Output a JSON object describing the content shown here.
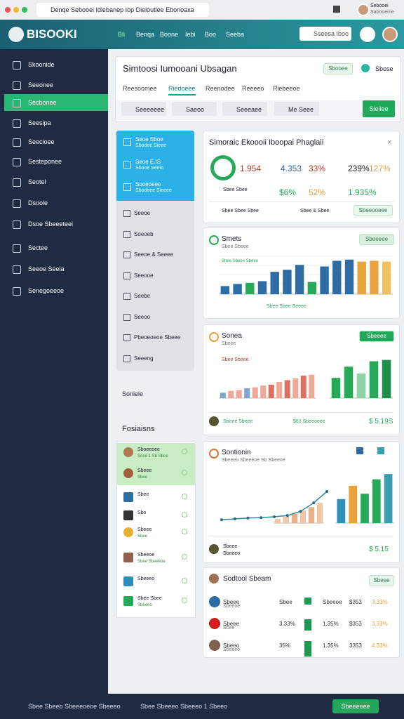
{
  "browser": {
    "tab": "Denqe Sebooei Idlebanep Iop Dieloutlee Ebonoaxa",
    "user": "Sebooei",
    "user_sub": "Sabooeme"
  },
  "header": {
    "logo": "BISOOKI",
    "nav": [
      "Bli",
      "Benqa",
      "Boone",
      "Iebi",
      "Boo",
      "Seeba"
    ],
    "search": "Sseesa Iboo"
  },
  "sidebar": {
    "active": 2,
    "items": [
      "Skoonide",
      "Seeonee",
      "Secbonee",
      "Seesipa",
      "Seecioee",
      "Sesteponee",
      "Seotel",
      "Dsoole",
      "Dsoe Sbeeeteei",
      "Sectee",
      "Seeoe Seeia",
      "Senegoeeoe"
    ]
  },
  "page": {
    "title": "Simtoosi Iumooani Ubsagan",
    "badge": "Sbooee",
    "status": "Sbose",
    "active_tab": 1,
    "tabs": [
      "Reesoomee",
      "Riedoeee",
      "Reenodee",
      "Reeeeo",
      "Riebeeoe"
    ],
    "tools": [
      "Seeeeeee",
      "Saeoo",
      "Seeeaee",
      "Me Seee"
    ],
    "action": "Sieiiee"
  },
  "list": {
    "highlighted": [
      {
        "title": "Seoe Sboe",
        "sub": "Sbodee Sieee"
      },
      {
        "title": "Seoe E.IS",
        "sub": "Sbooe Seeio"
      },
      {
        "title": "Sooeoeee",
        "sub": "Sbodeee Sieeee"
      }
    ],
    "items": [
      "Seeoe",
      "Soeoeb",
      "Seeoe & Seeee",
      "Seeooe",
      "Seebe",
      "Seeoo",
      "Pbeoeoeoe Sbeee",
      "Seeeng"
    ],
    "footer": "Sonieie"
  },
  "people": {
    "title": "Fosiaisns",
    "items": [
      {
        "name": "Sboeeoee",
        "sub": "Seee 1 Sb Sbee"
      },
      {
        "name": "Sbeee",
        "sub": "Sbee"
      },
      {
        "name": "Sbee",
        "sub": ""
      },
      {
        "name": "Sbo",
        "sub": ""
      },
      {
        "name": "Sbeee",
        "sub": "Sbee"
      },
      {
        "name": "Sbeeoe",
        "sub": "Sbee Sbeeeoe"
      },
      {
        "name": "Sbeeeo",
        "sub": ""
      },
      {
        "name": "Sbee Sbee",
        "sub": "Sbeeeo"
      }
    ]
  },
  "summary": {
    "title": "Simoraic Ekoooii Iboopai Phaglaii",
    "ring_label": "Sbee Sbee",
    "metrics": [
      "1.954",
      "4.353",
      "33%",
      "239%",
      "127%",
      "$6%",
      "52%",
      "1.935%"
    ],
    "foot": [
      "Sbee Sbee Sbee",
      "Sbee & Sbee",
      "Sbeeooeee"
    ]
  },
  "chart1": {
    "title": "Smets",
    "sub": "Sbee Sbeee",
    "button": "Sbeeeee",
    "legend": "Sbee Sbeee Sbeee",
    "caption": "Sbee Sbee Seeee",
    "ylim": [
      0,
      100
    ],
    "bars": [
      {
        "value": 20,
        "color": "#2e6da4"
      },
      {
        "value": 25,
        "color": "#2e6da4"
      },
      {
        "value": 28,
        "color": "#27a95a"
      },
      {
        "value": 32,
        "color": "#2e6da4"
      },
      {
        "value": 55,
        "color": "#2e6da4"
      },
      {
        "value": 60,
        "color": "#2e6da4"
      },
      {
        "value": 72,
        "color": "#2e6da4"
      },
      {
        "value": 30,
        "color": "#27a95a"
      },
      {
        "value": 68,
        "color": "#2e6da4"
      },
      {
        "value": 82,
        "color": "#2e6da4"
      },
      {
        "value": 85,
        "color": "#2e6da4"
      },
      {
        "value": 80,
        "color": "#e8a33d"
      },
      {
        "value": 82,
        "color": "#e8a33d"
      },
      {
        "value": 80,
        "color": "#f0c060"
      }
    ]
  },
  "chart2": {
    "title": "Sonea",
    "sub": "Sbeee",
    "button": "Sbeeee",
    "note": "Sbee Sbeee",
    "ylim": [
      0,
      100
    ],
    "left": [
      {
        "value": 12,
        "color": "#7da7cf"
      },
      {
        "value": 16,
        "color": "#f0a898"
      },
      {
        "value": 18,
        "color": "#f0a898"
      },
      {
        "value": 22,
        "color": "#7da7cf"
      },
      {
        "value": 24,
        "color": "#f0a898"
      },
      {
        "value": 28,
        "color": "#f0a898"
      },
      {
        "value": 30,
        "color": "#e07060"
      },
      {
        "value": 36,
        "color": "#f0a898"
      },
      {
        "value": 40,
        "color": "#e07060"
      },
      {
        "value": 44,
        "color": "#f0a898"
      },
      {
        "value": 50,
        "color": "#e07060"
      },
      {
        "value": 52,
        "color": "#f0a898"
      }
    ],
    "right": [
      {
        "value": 45,
        "color": "#27a95a"
      },
      {
        "value": 70,
        "color": "#27a95a"
      },
      {
        "value": 55,
        "color": "#8fd3a8"
      },
      {
        "value": 82,
        "color": "#27a95a"
      },
      {
        "value": 85,
        "color": "#1e8f4a"
      }
    ],
    "foot": [
      "Sbeee Sbeee",
      "$63 Sbeeoeee",
      "$ 5.19S"
    ]
  },
  "chart3": {
    "title": "Sontionin",
    "sub": "Sbeeeo Sbeeeoe Sb Sbeeoe",
    "ylim": [
      0,
      100
    ],
    "line": [
      8,
      10,
      12,
      13,
      15,
      18,
      28,
      48,
      75
    ],
    "left": [
      {
        "value": 10,
        "color": "#f0c8a8"
      },
      {
        "value": 15,
        "color": "#f0c8a8"
      },
      {
        "value": 22,
        "color": "#e8b088"
      },
      {
        "value": 30,
        "color": "#f0c8a8"
      },
      {
        "value": 38,
        "color": "#e8b088"
      },
      {
        "value": 48,
        "color": "#f0c8a8"
      }
    ],
    "right": [
      {
        "value": 45,
        "color": "#2e8fb8"
      },
      {
        "value": 70,
        "color": "#e8a33d"
      },
      {
        "value": 55,
        "color": "#27a95a"
      },
      {
        "value": 82,
        "color": "#27a95a"
      },
      {
        "value": 92,
        "color": "#3aa0b0"
      }
    ],
    "foot": [
      "Sbeee",
      "Sbeeeo",
      "$ 5.15"
    ]
  },
  "table": {
    "title": "Sodtool Sbeam",
    "button": "Sbeee",
    "rows": [
      [
        "Sbeee",
        "Sbeeoe",
        "Sbee",
        "Sbeeoe",
        "$353",
        "3.33%"
      ],
      [
        "Sbeee",
        "Sbee",
        "3.33%",
        "1.35%",
        "$353",
        "3.33%"
      ],
      [
        "Sbeeo",
        "Sbeeeo",
        "35%",
        "1.35%",
        "3353",
        "4.33%"
      ]
    ]
  },
  "footer": {
    "left": "Sbee Sbeeo Sbeeeoeoe Sbeeeo",
    "right": "Sbee Sbeeeo Sbeeeo 1 Sbeeo",
    "button": "Sbeeeeee"
  }
}
